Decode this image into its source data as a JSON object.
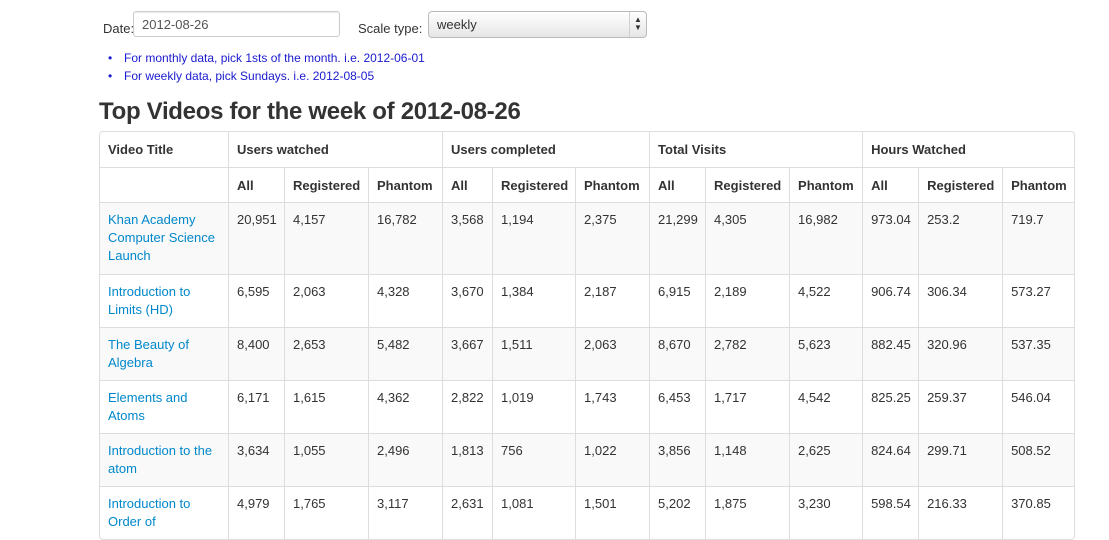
{
  "form": {
    "date_label": "Date:",
    "date_value": "2012-08-26",
    "scale_label": "Scale type:",
    "scale_value": "weekly"
  },
  "hints": [
    "For monthly data, pick 1sts of the month. i.e. 2012-06-01",
    "For weekly data, pick Sundays. i.e. 2012-08-05"
  ],
  "heading": "Top Videos for the week of 2012-08-26",
  "table": {
    "col_title": "Video Title",
    "groups": [
      "Users watched",
      "Users completed",
      "Total Visits",
      "Hours Watched"
    ],
    "subheaders": [
      "All",
      "Registered",
      "Phantom"
    ],
    "rows": [
      {
        "title": "Khan Academy Computer Science Launch",
        "values": [
          "20,951",
          "4,157",
          "16,782",
          "3,568",
          "1,194",
          "2,375",
          "21,299",
          "4,305",
          "16,982",
          "973.04",
          "253.2",
          "719.7"
        ]
      },
      {
        "title": "Introduction to Limits (HD)",
        "values": [
          "6,595",
          "2,063",
          "4,328",
          "3,670",
          "1,384",
          "2,187",
          "6,915",
          "2,189",
          "4,522",
          "906.74",
          "306.34",
          "573.27"
        ]
      },
      {
        "title": "The Beauty of Algebra",
        "values": [
          "8,400",
          "2,653",
          "5,482",
          "3,667",
          "1,511",
          "2,063",
          "8,670",
          "2,782",
          "5,623",
          "882.45",
          "320.96",
          "537.35"
        ]
      },
      {
        "title": "Elements and Atoms",
        "values": [
          "6,171",
          "1,615",
          "4,362",
          "2,822",
          "1,019",
          "1,743",
          "6,453",
          "1,717",
          "4,542",
          "825.25",
          "259.37",
          "546.04"
        ]
      },
      {
        "title": "Introduction to the atom",
        "values": [
          "3,634",
          "1,055",
          "2,496",
          "1,813",
          "756",
          "1,022",
          "3,856",
          "1,148",
          "2,625",
          "824.64",
          "299.71",
          "508.52"
        ]
      },
      {
        "title": "Introduction to Order of",
        "values": [
          "4,979",
          "1,765",
          "3,117",
          "2,631",
          "1,081",
          "1,501",
          "5,202",
          "1,875",
          "3,230",
          "598.54",
          "216.33",
          "370.85"
        ]
      }
    ]
  }
}
